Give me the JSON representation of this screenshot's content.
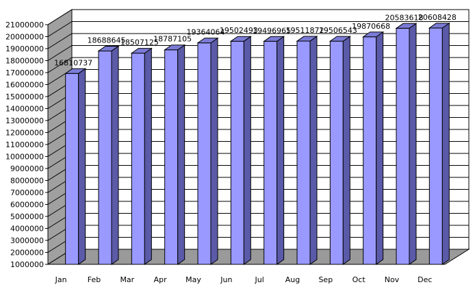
{
  "chart_data": {
    "type": "bar",
    "style": "3d-column",
    "categories": [
      "Jan",
      "Feb",
      "Mar",
      "Apr",
      "May",
      "Jun",
      "Jul",
      "Aug",
      "Sep",
      "Oct",
      "Nov",
      "Dec"
    ],
    "values": [
      16810737,
      18688645,
      18507125,
      18787105,
      19364064,
      19502493,
      19496965,
      19511872,
      19506543,
      19870668,
      20583618,
      20608428
    ],
    "data_labels": [
      "16810737",
      "18688645",
      "18507125",
      "18787105",
      "19364064",
      "19502493",
      "19496965",
      "19511872",
      "19506543",
      "19870668",
      "20583618",
      "20608428"
    ],
    "y_ticks": [
      "1000000",
      "2000000",
      "3000000",
      "4000000",
      "5000000",
      "6000000",
      "7000000",
      "8000000",
      "9000000",
      "10000000",
      "11000000",
      "12000000",
      "13000000",
      "14000000",
      "15000000",
      "16000000",
      "17000000",
      "18000000",
      "19000000",
      "20000000",
      "21000000"
    ],
    "ylim": [
      1000000,
      21000000
    ],
    "title": "",
    "xlabel": "",
    "ylabel": "",
    "grid": true,
    "legend": "none",
    "colors": {
      "bar_front": "#9999ff",
      "bar_side": "#5a5aa8",
      "bar_top": "#7b7bd6",
      "floor": "#9a9a9a",
      "back_wall": "#ffffff",
      "side_wall": "#a0a0a0",
      "gridline": "#000000",
      "outline": "#000000"
    }
  }
}
